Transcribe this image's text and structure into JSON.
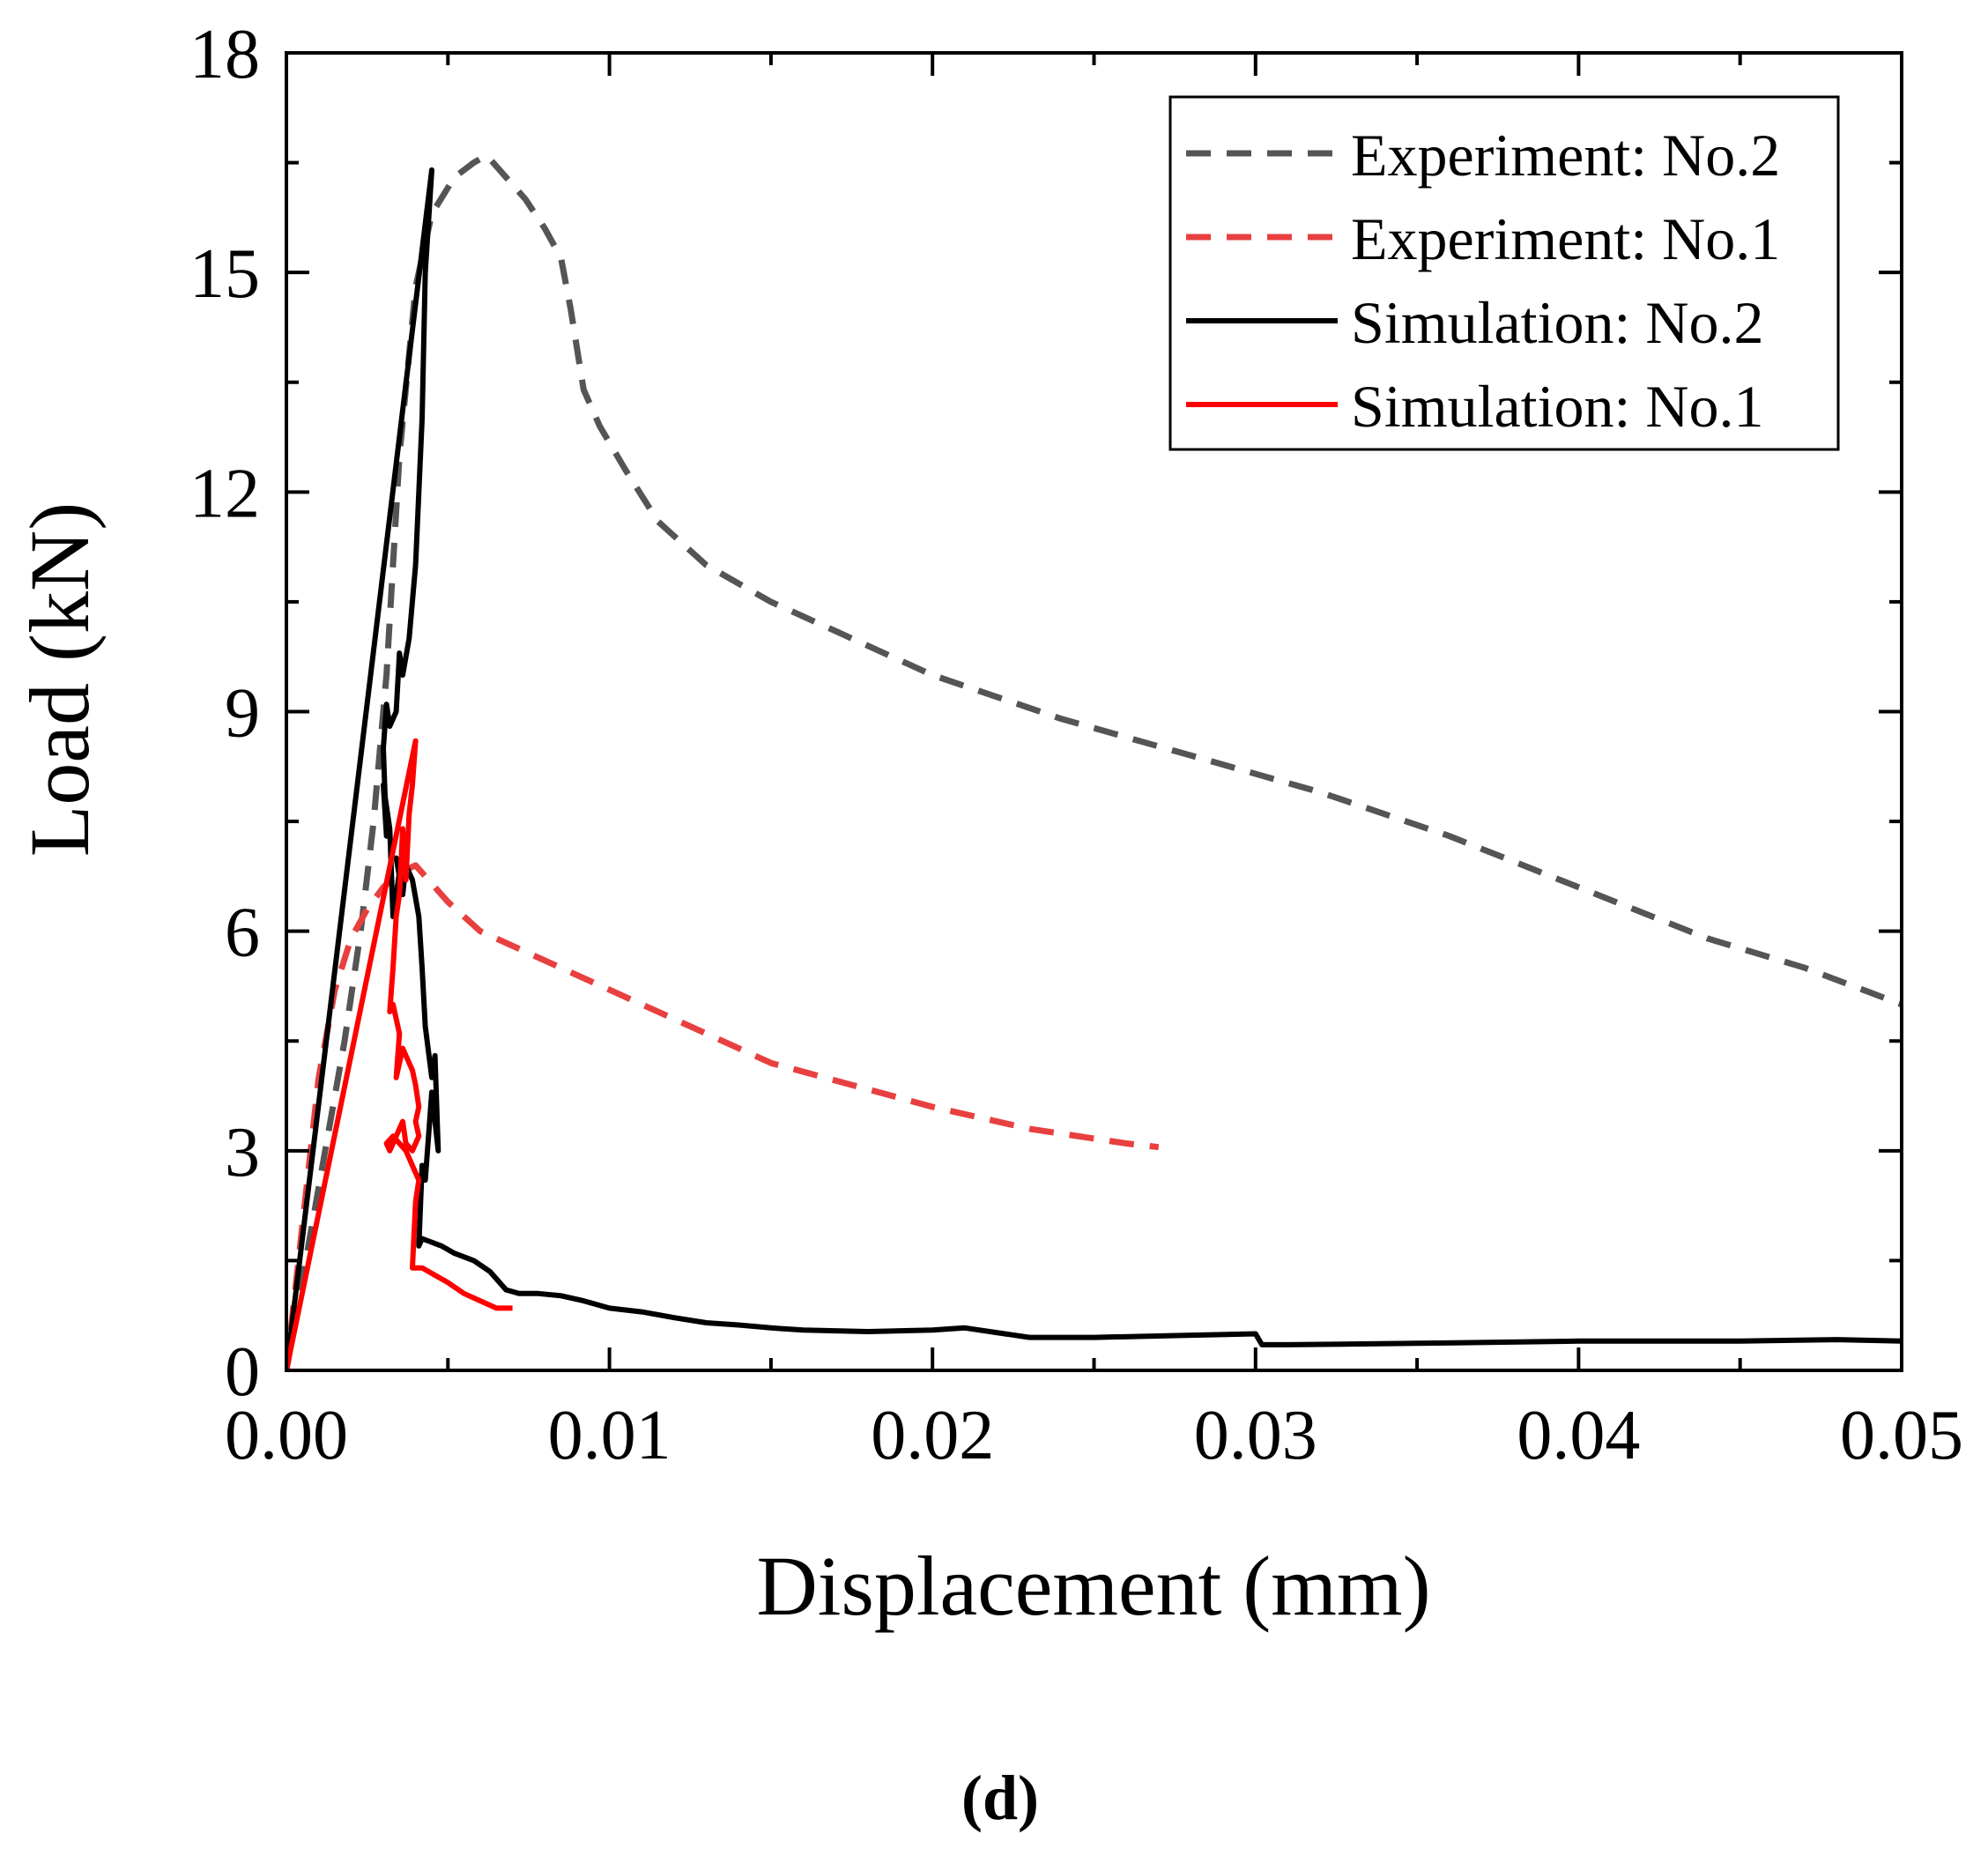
{
  "chart_data": {
    "type": "line",
    "title": "",
    "xlabel": "Displacement (mm)",
    "ylabel": "Load (kN)",
    "xlim": [
      0,
      0.05
    ],
    "ylim": [
      0,
      18
    ],
    "xticks": [
      "0.00",
      "0.01",
      "0.02",
      "0.03",
      "0.04",
      "0.05"
    ],
    "yticks": [
      "0",
      "3",
      "6",
      "9",
      "12",
      "15",
      "18"
    ],
    "grid": false,
    "legend_position": "top-right",
    "panel_label": "(d)",
    "series": [
      {
        "name": "Experiment: No.2",
        "style": "dashed",
        "color": "#555555",
        "x": [
          0,
          0.0006,
          0.0012,
          0.0018,
          0.0023,
          0.0027,
          0.0031,
          0.0035,
          0.004,
          0.0045,
          0.0052,
          0.0058,
          0.0062,
          0.0068,
          0.0074,
          0.008,
          0.0085,
          0.0088,
          0.0092,
          0.0097,
          0.0105,
          0.0115,
          0.013,
          0.015,
          0.017,
          0.02,
          0.024,
          0.028,
          0.032,
          0.036,
          0.04,
          0.044,
          0.047,
          0.05
        ],
        "y": [
          0,
          1.5,
          3.0,
          4.5,
          6.0,
          7.5,
          9.5,
          12.5,
          14.8,
          15.8,
          16.3,
          16.5,
          16.6,
          16.3,
          16.0,
          15.6,
          15.2,
          14.5,
          13.4,
          12.9,
          12.3,
          11.6,
          11.0,
          10.5,
          10.1,
          9.5,
          8.9,
          8.4,
          7.9,
          7.3,
          6.6,
          5.9,
          5.5,
          5.0
        ]
      },
      {
        "name": "Experiment: No.1",
        "style": "dashed",
        "color": "#e84040",
        "x": [
          0,
          0.0005,
          0.001,
          0.0015,
          0.002,
          0.0025,
          0.003,
          0.0035,
          0.004,
          0.005,
          0.006,
          0.0075,
          0.009,
          0.011,
          0.013,
          0.015,
          0.0175,
          0.02,
          0.023,
          0.026,
          0.027
        ],
        "y": [
          0,
          2.0,
          4.0,
          5.2,
          5.9,
          6.3,
          6.6,
          6.8,
          6.9,
          6.4,
          6.0,
          5.7,
          5.4,
          5.0,
          4.6,
          4.2,
          3.9,
          3.6,
          3.3,
          3.1,
          3.05
        ]
      },
      {
        "name": "Simulation: No.2",
        "style": "solid",
        "color": "#000000",
        "x": [
          0,
          0.0045,
          0.0043,
          0.0042,
          0.004,
          0.0038,
          0.0036,
          0.0035,
          0.0034,
          0.0032,
          0.0031,
          0.003,
          0.0031,
          0.003,
          0.0032,
          0.0033,
          0.0035,
          0.0034,
          0.0036,
          0.0037,
          0.0039,
          0.0041,
          0.0042,
          0.0043,
          0.0045,
          0.0046,
          0.0047,
          0.0045,
          0.0044,
          0.0043,
          0.0042,
          0.0041,
          0.0042,
          0.0048,
          0.0052,
          0.0058,
          0.0063,
          0.0068,
          0.0072,
          0.0078,
          0.0085,
          0.0092,
          0.01,
          0.011,
          0.012,
          0.013,
          0.014,
          0.015,
          0.016,
          0.018,
          0.02,
          0.021,
          0.023,
          0.025,
          0.028,
          0.03,
          0.0302,
          0.031,
          0.035,
          0.04,
          0.045,
          0.048,
          0.05
        ],
        "y": [
          0,
          16.4,
          15.0,
          13.0,
          11.0,
          10.0,
          9.5,
          9.8,
          9.0,
          8.8,
          9.1,
          8.5,
          7.3,
          8.0,
          7.4,
          6.2,
          6.8,
          7.0,
          6.5,
          6.9,
          6.7,
          6.2,
          5.5,
          4.7,
          4.0,
          4.3,
          3.0,
          3.8,
          3.2,
          2.6,
          2.8,
          1.7,
          1.8,
          1.7,
          1.6,
          1.5,
          1.35,
          1.1,
          1.05,
          1.05,
          1.02,
          0.95,
          0.85,
          0.8,
          0.72,
          0.65,
          0.62,
          0.58,
          0.55,
          0.53,
          0.55,
          0.58,
          0.45,
          0.45,
          0.48,
          0.5,
          0.35,
          0.35,
          0.37,
          0.4,
          0.4,
          0.42,
          0.4
        ]
      },
      {
        "name": "Simulation: No.1",
        "style": "solid",
        "color": "#ff0000",
        "x": [
          0,
          0.004,
          0.0039,
          0.0038,
          0.0037,
          0.0036,
          0.0035,
          0.0034,
          0.0033,
          0.0032,
          0.0033,
          0.0035,
          0.0034,
          0.0036,
          0.0038,
          0.0039,
          0.004,
          0.0041,
          0.004,
          0.0041,
          0.0039,
          0.0037,
          0.0036,
          0.0035,
          0.0034,
          0.0033,
          0.0032,
          0.0031,
          0.0033,
          0.0035,
          0.0037,
          0.0038,
          0.004,
          0.0041,
          0.004,
          0.0039,
          0.0039,
          0.0042,
          0.0046,
          0.005,
          0.0055,
          0.006,
          0.0065,
          0.007
        ],
        "y": [
          0,
          8.6,
          8.0,
          7.6,
          6.7,
          7.4,
          6.5,
          6.2,
          5.5,
          4.9,
          5.0,
          4.6,
          4.0,
          4.4,
          4.2,
          4.1,
          3.9,
          3.6,
          3.4,
          3.2,
          3.0,
          3.1,
          3.4,
          3.3,
          3.2,
          3.1,
          3.0,
          3.1,
          3.2,
          3.1,
          3.0,
          2.9,
          2.7,
          2.6,
          2.3,
          1.4,
          1.4,
          1.4,
          1.3,
          1.2,
          1.05,
          0.95,
          0.85,
          0.85
        ]
      }
    ]
  }
}
